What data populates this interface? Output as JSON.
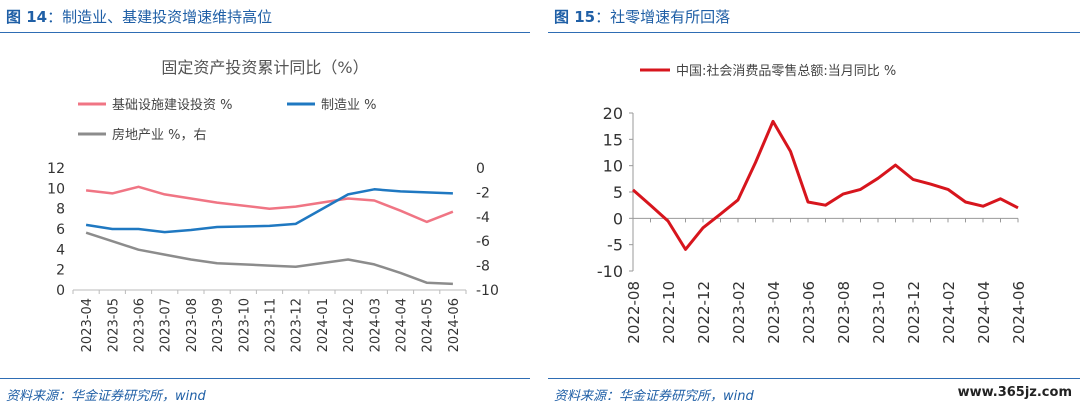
{
  "left": {
    "fig_label": "图 14",
    "fig_title": "：制造业、基建投资增速维持高位",
    "source": "资料来源：华金证券研究所，wind",
    "chart_data": {
      "type": "line",
      "title": "固定资产投资累计同比（%）",
      "categories": [
        "2023-04",
        "2023-05",
        "2023-06",
        "2023-07",
        "2023-08",
        "2023-09",
        "2023-10",
        "2023-11",
        "2023-12",
        "2024-01",
        "2024-02",
        "2024-03",
        "2024-04",
        "2024-05",
        "2024-06"
      ],
      "x_tick_labels": [
        "2023-04",
        "2023-05",
        "2023-06",
        "2023-07",
        "2023-08",
        "2023-09",
        "2023-10",
        "2023-11",
        "2023-12",
        "2024-01",
        "2024-02",
        "2024-03",
        "2024-04",
        "2024-05",
        "2024-06"
      ],
      "x_tick_label_points": [
        "2023-04",
        "2023-05",
        "2023-06",
        "2023-07",
        "2023-08",
        "2023-09",
        "2023-11",
        "2023-12",
        "2024-02",
        "2024-03",
        "2024-04",
        "2024-05",
        "2024-06"
      ],
      "ylim": [
        0,
        12
      ],
      "yticks": [
        0,
        2,
        4,
        6,
        8,
        10,
        12
      ],
      "y2lim": [
        -10,
        0
      ],
      "y2ticks": [
        -10,
        -8,
        -6,
        -4,
        -2,
        0
      ],
      "legend_placement": "top-left",
      "grid": false,
      "series": [
        {
          "name": "基础设施建设投资 %",
          "color": "#f07584",
          "axis": "left",
          "points": [
            [
              "2023-04",
              9.8
            ],
            [
              "2023-05",
              9.5
            ],
            [
              "2023-06",
              10.15
            ],
            [
              "2023-07",
              9.4
            ],
            [
              "2023-08",
              9.0
            ],
            [
              "2023-09",
              8.6
            ],
            [
              "2023-11",
              8.0
            ],
            [
              "2023-12",
              8.2
            ],
            [
              "2024-02",
              9.0
            ],
            [
              "2024-03",
              8.8
            ],
            [
              "2024-04",
              7.8
            ],
            [
              "2024-05",
              6.7
            ],
            [
              "2024-06",
              7.7
            ]
          ]
        },
        {
          "name": "制造业 %",
          "color": "#1f78c1",
          "axis": "left",
          "points": [
            [
              "2023-04",
              6.4
            ],
            [
              "2023-05",
              6.0
            ],
            [
              "2023-06",
              6.0
            ],
            [
              "2023-07",
              5.7
            ],
            [
              "2023-08",
              5.9
            ],
            [
              "2023-09",
              6.2
            ],
            [
              "2023-11",
              6.3
            ],
            [
              "2023-12",
              6.5
            ],
            [
              "2024-02",
              9.4
            ],
            [
              "2024-03",
              9.9
            ],
            [
              "2024-04",
              9.7
            ],
            [
              "2024-05",
              9.6
            ],
            [
              "2024-06",
              9.5
            ]
          ]
        },
        {
          "name": "房地产业 %，右",
          "color": "#8c8c8c",
          "axis": "right",
          "points": [
            [
              "2023-04",
              -5.3
            ],
            [
              "2023-05",
              -6.0
            ],
            [
              "2023-06",
              -6.7
            ],
            [
              "2023-07",
              -7.1
            ],
            [
              "2023-08",
              -7.5
            ],
            [
              "2023-09",
              -7.8
            ],
            [
              "2023-11",
              -8.0
            ],
            [
              "2023-12",
              -8.1
            ],
            [
              "2024-02",
              -7.5
            ],
            [
              "2024-03",
              -7.9
            ],
            [
              "2024-04",
              -8.6
            ],
            [
              "2024-05",
              -9.4
            ],
            [
              "2024-06",
              -9.5
            ]
          ]
        }
      ]
    }
  },
  "right": {
    "fig_label": "图 15",
    "fig_title": "：社零增速有所回落",
    "source": "资料来源：华金证券研究所，wind",
    "watermark": "www.365jz.com",
    "chart_data": {
      "type": "line",
      "title": "",
      "categories": [
        "2022-08",
        "2022-09",
        "2022-10",
        "2022-11",
        "2022-12",
        "2023-01",
        "2023-02",
        "2023-03",
        "2023-04",
        "2023-05",
        "2023-06",
        "2023-07",
        "2023-08",
        "2023-09",
        "2023-10",
        "2023-11",
        "2023-12",
        "2024-01",
        "2024-02",
        "2024-03",
        "2024-04",
        "2024-05",
        "2024-06"
      ],
      "x_tick_labels": [
        "2022-08",
        "2022-10",
        "2022-12",
        "2023-02",
        "2023-04",
        "2023-06",
        "2023-08",
        "2023-10",
        "2023-12",
        "2024-02",
        "2024-04",
        "2024-06"
      ],
      "ylim": [
        -10,
        20
      ],
      "yticks": [
        -10,
        -5,
        0,
        5,
        10,
        15,
        20
      ],
      "legend_placement": "top",
      "grid": false,
      "series": [
        {
          "name": "中国:社会消费品零售总额:当月同比 %",
          "color": "#d7151d",
          "values": [
            5.4,
            2.5,
            -0.5,
            -5.9,
            -1.8,
            0.8,
            3.5,
            10.6,
            18.4,
            12.7,
            3.1,
            2.5,
            4.6,
            5.5,
            7.6,
            10.1,
            7.4,
            6.5,
            5.5,
            3.1,
            2.3,
            3.7,
            2.0
          ]
        }
      ]
    }
  }
}
